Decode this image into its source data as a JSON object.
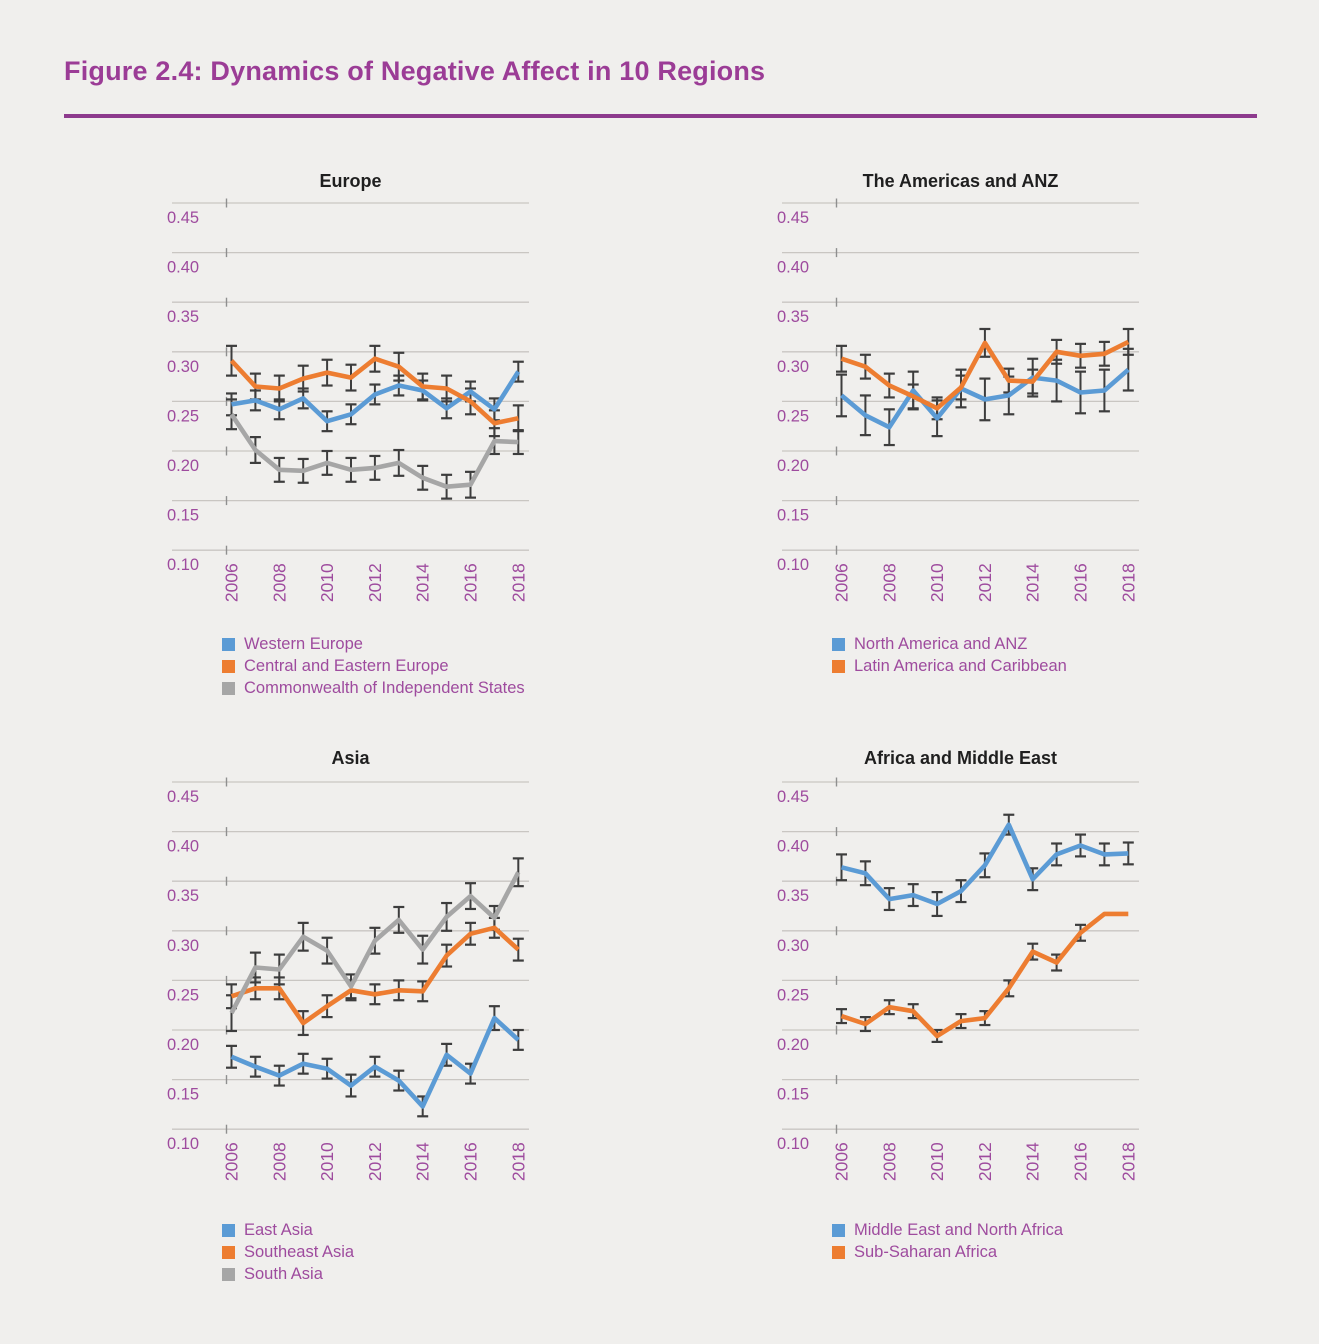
{
  "page": {
    "title": "Figure 2.4: Dynamics of Negative Affect in 10 Regions"
  },
  "colors": {
    "background": "#f0efed",
    "title_purple": "#9b3c96",
    "rule_purple": "#8d3a8d",
    "label_purple": "#9e4b9e",
    "grid": "#c9c6c2",
    "axis_tick": "#8f8f8f",
    "error_bar": "#3d3d3d",
    "chart_title_color": "#1f1f1f",
    "blue": "#5b9bd5",
    "orange": "#ed7d31",
    "gray": "#a6a6a6"
  },
  "axis": {
    "y_ticks": [
      "0.45",
      "0.40",
      "0.35",
      "0.30",
      "0.25",
      "0.20",
      "0.15",
      "0.10"
    ],
    "y_max": 0.45,
    "y_min": 0.1,
    "y_step": 0.05,
    "labeled_years": [
      2006,
      2008,
      2010,
      2012,
      2014,
      2016,
      2018
    ]
  },
  "chart_data": [
    {
      "type": "line",
      "title": "Europe",
      "x": [
        2006,
        2007,
        2008,
        2009,
        2010,
        2011,
        2012,
        2013,
        2014,
        2015,
        2016,
        2017,
        2018
      ],
      "ylim": [
        0.1,
        0.45
      ],
      "grid": true,
      "legend_position": "bottom-left",
      "series": [
        {
          "name": "Western Europe",
          "color": "blue",
          "values": [
            0.247,
            0.251,
            0.242,
            0.253,
            0.23,
            0.237,
            0.257,
            0.266,
            0.261,
            0.243,
            0.26,
            0.242,
            0.28
          ],
          "errors": [
            0.011,
            0.01,
            0.01,
            0.01,
            0.01,
            0.01,
            0.01,
            0.01,
            0.01,
            0.01,
            0.01,
            0.011,
            0.01
          ]
        },
        {
          "name": "Central and Eastern Europe",
          "color": "orange",
          "values": [
            0.291,
            0.265,
            0.263,
            0.273,
            0.279,
            0.274,
            0.293,
            0.285,
            0.265,
            0.263,
            0.25,
            0.228,
            0.233
          ],
          "errors": [
            0.015,
            0.013,
            0.013,
            0.013,
            0.013,
            0.013,
            0.013,
            0.014,
            0.013,
            0.013,
            0.013,
            0.013,
            0.013
          ]
        },
        {
          "name": "Commonwealth of Independent States",
          "color": "gray",
          "values": [
            0.237,
            0.201,
            0.181,
            0.18,
            0.188,
            0.181,
            0.183,
            0.188,
            0.173,
            0.164,
            0.166,
            0.21,
            0.209
          ],
          "errors": [
            0.015,
            0.013,
            0.012,
            0.012,
            0.012,
            0.012,
            0.012,
            0.013,
            0.012,
            0.012,
            0.013,
            0.013,
            0.012
          ]
        }
      ]
    },
    {
      "type": "line",
      "title": "The Americas and ANZ",
      "x": [
        2006,
        2007,
        2008,
        2009,
        2010,
        2011,
        2012,
        2013,
        2014,
        2015,
        2016,
        2017,
        2018
      ],
      "ylim": [
        0.1,
        0.45
      ],
      "grid": true,
      "legend_position": "bottom-left",
      "series": [
        {
          "name": "North America and ANZ",
          "color": "blue",
          "values": [
            0.256,
            0.236,
            0.224,
            0.261,
            0.233,
            0.263,
            0.252,
            0.256,
            0.274,
            0.271,
            0.259,
            0.261,
            0.282
          ],
          "errors": [
            0.021,
            0.02,
            0.018,
            0.019,
            0.018,
            0.019,
            0.021,
            0.019,
            0.019,
            0.021,
            0.021,
            0.021,
            0.021
          ]
        },
        {
          "name": "Latin America and Caribbean",
          "color": "orange",
          "values": [
            0.293,
            0.285,
            0.266,
            0.255,
            0.243,
            0.264,
            0.309,
            0.271,
            0.27,
            0.3,
            0.296,
            0.298,
            0.31
          ],
          "errors": [
            0.013,
            0.012,
            0.012,
            0.012,
            0.011,
            0.012,
            0.014,
            0.012,
            0.012,
            0.012,
            0.012,
            0.012,
            0.013
          ]
        }
      ]
    },
    {
      "type": "line",
      "title": "Asia",
      "x": [
        2006,
        2007,
        2008,
        2009,
        2010,
        2011,
        2012,
        2013,
        2014,
        2015,
        2016,
        2017,
        2018
      ],
      "ylim": [
        0.1,
        0.45
      ],
      "grid": true,
      "legend_position": "bottom-left",
      "series": [
        {
          "name": "East Asia",
          "color": "blue",
          "values": [
            0.173,
            0.163,
            0.154,
            0.166,
            0.161,
            0.144,
            0.163,
            0.149,
            0.123,
            0.175,
            0.156,
            0.212,
            0.19
          ],
          "errors": [
            0.011,
            0.01,
            0.01,
            0.01,
            0.01,
            0.011,
            0.01,
            0.01,
            0.01,
            0.011,
            0.01,
            0.012,
            0.01
          ]
        },
        {
          "name": "Southeast Asia",
          "color": "orange",
          "values": [
            0.234,
            0.242,
            0.242,
            0.207,
            0.224,
            0.24,
            0.236,
            0.24,
            0.239,
            0.275,
            0.297,
            0.303,
            0.281
          ],
          "errors": [
            0.012,
            0.011,
            0.011,
            0.012,
            0.011,
            0.01,
            0.01,
            0.01,
            0.01,
            0.011,
            0.011,
            0.01,
            0.011
          ]
        },
        {
          "name": "South Asia",
          "color": "gray",
          "values": [
            0.217,
            0.263,
            0.261,
            0.294,
            0.28,
            0.244,
            0.29,
            0.311,
            0.281,
            0.314,
            0.335,
            0.313,
            0.359
          ],
          "errors": [
            0.018,
            0.015,
            0.015,
            0.014,
            0.013,
            0.012,
            0.013,
            0.013,
            0.014,
            0.014,
            0.013,
            0.012,
            0.014
          ]
        }
      ]
    },
    {
      "type": "line",
      "title": "Africa and Middle East",
      "x": [
        2006,
        2007,
        2008,
        2009,
        2010,
        2011,
        2012,
        2013,
        2014,
        2015,
        2016,
        2017,
        2018
      ],
      "ylim": [
        0.1,
        0.45
      ],
      "grid": true,
      "legend_position": "bottom-left",
      "series": [
        {
          "name": "Middle East and North Africa",
          "color": "blue",
          "values": [
            0.364,
            0.358,
            0.332,
            0.336,
            0.327,
            0.34,
            0.366,
            0.407,
            0.352,
            0.377,
            0.386,
            0.377,
            0.378
          ],
          "errors": [
            0.013,
            0.012,
            0.011,
            0.011,
            0.012,
            0.011,
            0.012,
            0.01,
            0.011,
            0.011,
            0.011,
            0.011,
            0.011
          ]
        },
        {
          "name": "Sub-Saharan Africa",
          "color": "orange",
          "values": [
            0.214,
            0.206,
            0.223,
            0.219,
            0.194,
            0.209,
            0.212,
            0.242,
            0.279,
            0.268,
            0.298,
            0.317,
            0.317
          ],
          "errors": [
            0.007,
            0.007,
            0.007,
            0.007,
            0.006,
            0.007,
            0.007,
            0.008,
            0.008,
            0.008,
            0.008,
            null,
            null
          ]
        }
      ]
    }
  ]
}
